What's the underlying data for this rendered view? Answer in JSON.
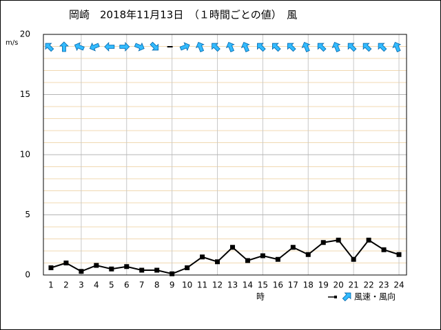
{
  "chart_data": {
    "type": "line",
    "title": "岡崎　2018年11月13日　（１時間ごとの値）　風",
    "y_label": "m/s",
    "x_label": "時",
    "categories": [
      "1",
      "2",
      "3",
      "4",
      "5",
      "6",
      "7",
      "8",
      "9",
      "10",
      "11",
      "12",
      "13",
      "14",
      "15",
      "16",
      "17",
      "18",
      "19",
      "20",
      "21",
      "22",
      "23",
      "24"
    ],
    "series": [
      {
        "name": "風速・風向",
        "color": "#000000",
        "values": [
          0.6,
          1.0,
          0.3,
          0.8,
          0.5,
          0.7,
          0.4,
          0.4,
          0.1,
          0.6,
          1.5,
          1.1,
          2.3,
          1.2,
          1.6,
          1.3,
          2.3,
          1.7,
          2.7,
          2.9,
          1.3,
          2.9,
          2.1,
          1.7
        ]
      }
    ],
    "directions": [
      135,
      180,
      112.5,
      67.5,
      90,
      270,
      292.5,
      315,
      null,
      247.5,
      157.5,
      135,
      157.5,
      157.5,
      135,
      135,
      135,
      157.5,
      135,
      157.5,
      135,
      135,
      135,
      157.5
    ],
    "arrow_color": "#33bbff",
    "ylim": [
      0,
      20
    ],
    "yticks": [
      0,
      5,
      10,
      15,
      20
    ],
    "yticks_minor": [
      1,
      2,
      3,
      4,
      6,
      7,
      8,
      9,
      11,
      12,
      13,
      14,
      16,
      17,
      18,
      19
    ],
    "grid": true
  }
}
